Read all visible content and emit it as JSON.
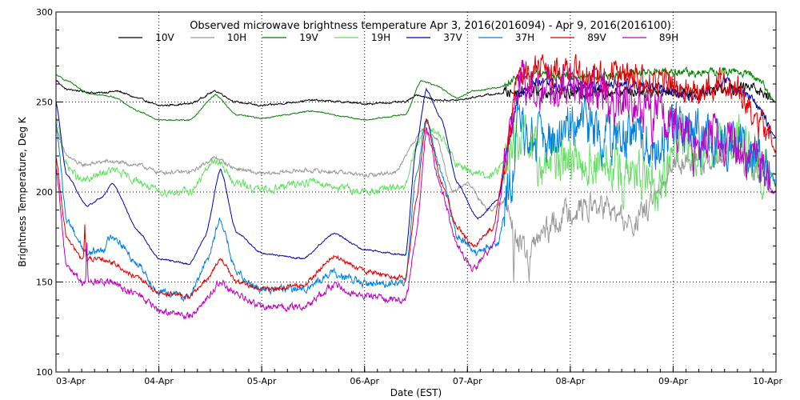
{
  "chart_data": {
    "type": "line",
    "title": "Observed microwave brightness temperature Apr  3, 2016(2016094) - Apr  9, 2016(2016100)",
    "xlabel": "Date (EST)",
    "ylabel": "Brightness Temperature, Deg K",
    "ylim": [
      100,
      300
    ],
    "xlim": [
      0,
      7
    ],
    "y_ticks": [
      100,
      150,
      200,
      250,
      300
    ],
    "x_ticks": [
      {
        "x": 0,
        "label": "03-Apr"
      },
      {
        "x": 1,
        "label": "04-Apr"
      },
      {
        "x": 2,
        "label": "05-Apr"
      },
      {
        "x": 3,
        "label": "06-Apr"
      },
      {
        "x": 4,
        "label": "07-Apr"
      },
      {
        "x": 5,
        "label": "08-Apr"
      },
      {
        "x": 6,
        "label": "09-Apr"
      },
      {
        "x": 7,
        "label": "10-Apr"
      }
    ],
    "grid": "dotted",
    "legend_position": "top",
    "series": [
      {
        "name": "10V",
        "color": "#000000",
        "noise": 1.2,
        "points": [
          [
            0,
            262
          ],
          [
            0.1,
            257
          ],
          [
            0.4,
            255
          ],
          [
            0.6,
            256
          ],
          [
            0.8,
            252
          ],
          [
            1.0,
            248
          ],
          [
            1.3,
            249
          ],
          [
            1.55,
            256
          ],
          [
            1.75,
            250
          ],
          [
            2.0,
            248
          ],
          [
            2.5,
            251
          ],
          [
            2.8,
            250
          ],
          [
            3.0,
            249
          ],
          [
            3.4,
            250
          ],
          [
            3.5,
            254
          ],
          [
            3.7,
            251
          ],
          [
            3.9,
            251
          ],
          [
            4.2,
            254
          ],
          [
            4.5,
            256
          ],
          [
            4.7,
            256
          ],
          [
            5.0,
            255
          ],
          [
            5.5,
            256
          ],
          [
            5.9,
            256
          ],
          [
            6.2,
            255
          ],
          [
            6.5,
            258
          ],
          [
            6.8,
            258
          ],
          [
            7.0,
            250
          ]
        ]
      },
      {
        "name": "10H",
        "color": "#999999",
        "noise": 2.5,
        "points": [
          [
            0,
            235
          ],
          [
            0.1,
            220
          ],
          [
            0.25,
            215
          ],
          [
            0.5,
            217
          ],
          [
            0.8,
            215
          ],
          [
            1.0,
            211
          ],
          [
            1.3,
            211
          ],
          [
            1.55,
            219
          ],
          [
            1.75,
            213
          ],
          [
            2.0,
            210
          ],
          [
            2.4,
            212
          ],
          [
            2.8,
            211
          ],
          [
            3.0,
            209
          ],
          [
            3.3,
            211
          ],
          [
            3.45,
            225
          ],
          [
            3.55,
            235
          ],
          [
            3.7,
            230
          ],
          [
            3.85,
            200
          ],
          [
            4.0,
            205
          ],
          [
            4.2,
            190
          ],
          [
            4.4,
            195
          ],
          [
            4.5,
            170
          ],
          [
            4.6,
            165
          ],
          [
            4.7,
            175
          ],
          [
            5.0,
            190
          ],
          [
            5.3,
            192
          ],
          [
            5.6,
            182
          ],
          [
            5.9,
            200
          ],
          [
            6.0,
            220
          ],
          [
            6.3,
            215
          ],
          [
            6.6,
            222
          ],
          [
            6.8,
            212
          ],
          [
            7.0,
            210
          ]
        ],
        "spikes": [
          [
            4.45,
            150
          ],
          [
            4.6,
            150
          ],
          [
            5.55,
            180
          ]
        ]
      },
      {
        "name": "19V",
        "color": "#008000",
        "noise": 0.8,
        "points": [
          [
            0,
            265
          ],
          [
            0.1,
            262
          ],
          [
            0.3,
            255
          ],
          [
            0.55,
            253
          ],
          [
            0.8,
            245
          ],
          [
            1.0,
            240
          ],
          [
            1.3,
            240
          ],
          [
            1.55,
            254
          ],
          [
            1.75,
            243
          ],
          [
            2.0,
            241
          ],
          [
            2.5,
            245
          ],
          [
            2.8,
            242
          ],
          [
            3.0,
            240
          ],
          [
            3.4,
            243
          ],
          [
            3.55,
            262
          ],
          [
            3.7,
            259
          ],
          [
            3.9,
            252
          ],
          [
            4.05,
            256
          ],
          [
            4.3,
            258
          ],
          [
            4.5,
            264
          ],
          [
            4.7,
            265
          ],
          [
            5.0,
            264
          ],
          [
            5.5,
            265
          ],
          [
            5.9,
            267
          ],
          [
            6.2,
            266
          ],
          [
            6.6,
            267
          ],
          [
            6.8,
            264
          ],
          [
            7.0,
            250
          ]
        ]
      },
      {
        "name": "19H",
        "color": "#66e066",
        "noise": 5.0,
        "points": [
          [
            0,
            240
          ],
          [
            0.1,
            215
          ],
          [
            0.25,
            206
          ],
          [
            0.55,
            212
          ],
          [
            0.8,
            206
          ],
          [
            1.0,
            200
          ],
          [
            1.3,
            200
          ],
          [
            1.55,
            218
          ],
          [
            1.75,
            205
          ],
          [
            2.0,
            201
          ],
          [
            2.5,
            206
          ],
          [
            2.8,
            202
          ],
          [
            3.0,
            200
          ],
          [
            3.4,
            203
          ],
          [
            3.5,
            225
          ],
          [
            3.6,
            238
          ],
          [
            3.75,
            230
          ],
          [
            3.9,
            215
          ],
          [
            4.2,
            208
          ],
          [
            4.35,
            215
          ],
          [
            4.5,
            230
          ],
          [
            4.7,
            215
          ],
          [
            5.0,
            220
          ],
          [
            5.5,
            210
          ],
          [
            5.9,
            200
          ],
          [
            6.0,
            228
          ],
          [
            6.3,
            225
          ],
          [
            6.6,
            228
          ],
          [
            6.9,
            212
          ],
          [
            7.0,
            205
          ]
        ]
      },
      {
        "name": "37V",
        "color": "#0000aa",
        "noise": 1.0,
        "points": [
          [
            0,
            250
          ],
          [
            0.1,
            210
          ],
          [
            0.3,
            192
          ],
          [
            0.45,
            197
          ],
          [
            0.55,
            205
          ],
          [
            0.8,
            178
          ],
          [
            1.0,
            163
          ],
          [
            1.3,
            160
          ],
          [
            1.45,
            175
          ],
          [
            1.6,
            213
          ],
          [
            1.75,
            178
          ],
          [
            2.0,
            166
          ],
          [
            2.4,
            163
          ],
          [
            2.7,
            177
          ],
          [
            3.0,
            168
          ],
          [
            3.4,
            165
          ],
          [
            3.5,
            225
          ],
          [
            3.6,
            257
          ],
          [
            3.75,
            240
          ],
          [
            3.9,
            205
          ],
          [
            4.1,
            185
          ],
          [
            4.3,
            196
          ],
          [
            4.4,
            225
          ],
          [
            4.5,
            255
          ],
          [
            4.7,
            262
          ],
          [
            5.0,
            258
          ],
          [
            5.5,
            260
          ],
          [
            5.9,
            258
          ],
          [
            6.2,
            252
          ],
          [
            6.5,
            262
          ],
          [
            6.7,
            255
          ],
          [
            6.85,
            245
          ],
          [
            7.0,
            230
          ]
        ]
      },
      {
        "name": "37H",
        "color": "#0080e0",
        "noise": 5.0,
        "points": [
          [
            0,
            238
          ],
          [
            0.1,
            185
          ],
          [
            0.3,
            166
          ],
          [
            0.45,
            168
          ],
          [
            0.55,
            176
          ],
          [
            0.8,
            160
          ],
          [
            1.0,
            144
          ],
          [
            1.3,
            142
          ],
          [
            1.45,
            160
          ],
          [
            1.6,
            185
          ],
          [
            1.75,
            155
          ],
          [
            2.0,
            146
          ],
          [
            2.4,
            146
          ],
          [
            2.7,
            155
          ],
          [
            3.0,
            149
          ],
          [
            3.4,
            150
          ],
          [
            3.5,
            210
          ],
          [
            3.6,
            240
          ],
          [
            3.75,
            210
          ],
          [
            3.9,
            175
          ],
          [
            4.1,
            166
          ],
          [
            4.3,
            172
          ],
          [
            4.4,
            200
          ],
          [
            4.5,
            235
          ],
          [
            4.7,
            225
          ],
          [
            5.0,
            235
          ],
          [
            5.5,
            230
          ],
          [
            5.9,
            225
          ],
          [
            6.0,
            240
          ],
          [
            6.3,
            230
          ],
          [
            6.6,
            228
          ],
          [
            6.9,
            215
          ],
          [
            7.0,
            205
          ]
        ]
      },
      {
        "name": "89V",
        "color": "#e00000",
        "noise": 3.0,
        "points": [
          [
            0,
            218
          ],
          [
            0.1,
            175
          ],
          [
            0.25,
            163
          ],
          [
            0.5,
            162
          ],
          [
            0.8,
            152
          ],
          [
            1.0,
            144
          ],
          [
            1.3,
            142
          ],
          [
            1.45,
            150
          ],
          [
            1.6,
            163
          ],
          [
            1.75,
            150
          ],
          [
            2.0,
            146
          ],
          [
            2.4,
            148
          ],
          [
            2.7,
            164
          ],
          [
            3.0,
            156
          ],
          [
            3.4,
            152
          ],
          [
            3.5,
            195
          ],
          [
            3.6,
            240
          ],
          [
            3.75,
            205
          ],
          [
            3.9,
            180
          ],
          [
            4.05,
            170
          ],
          [
            4.25,
            180
          ],
          [
            4.4,
            230
          ],
          [
            4.5,
            262
          ],
          [
            4.7,
            268
          ],
          [
            5.0,
            265
          ],
          [
            5.5,
            264
          ],
          [
            5.9,
            262
          ],
          [
            6.2,
            255
          ],
          [
            6.5,
            262
          ],
          [
            6.7,
            252
          ],
          [
            6.85,
            238
          ],
          [
            7.0,
            222
          ]
        ],
        "spikes": [
          [
            0.28,
            182
          ]
        ]
      },
      {
        "name": "89H",
        "color": "#c000c0",
        "noise": 4.5,
        "points": [
          [
            0,
            212
          ],
          [
            0.1,
            160
          ],
          [
            0.25,
            150
          ],
          [
            0.5,
            150
          ],
          [
            0.8,
            143
          ],
          [
            1.0,
            134
          ],
          [
            1.3,
            131
          ],
          [
            1.45,
            140
          ],
          [
            1.6,
            150
          ],
          [
            1.75,
            143
          ],
          [
            2.0,
            136
          ],
          [
            2.4,
            136
          ],
          [
            2.7,
            148
          ],
          [
            3.0,
            142
          ],
          [
            3.4,
            140
          ],
          [
            3.5,
            175
          ],
          [
            3.6,
            235
          ],
          [
            3.75,
            200
          ],
          [
            3.9,
            170
          ],
          [
            4.05,
            157
          ],
          [
            4.25,
            170
          ],
          [
            4.4,
            225
          ],
          [
            4.5,
            262
          ],
          [
            4.7,
            260
          ],
          [
            5.0,
            262
          ],
          [
            5.5,
            250
          ],
          [
            5.9,
            240
          ],
          [
            6.2,
            225
          ],
          [
            6.5,
            230
          ],
          [
            6.8,
            220
          ],
          [
            7.0,
            198
          ]
        ],
        "spikes": [
          [
            0.3,
            172
          ]
        ]
      }
    ]
  }
}
